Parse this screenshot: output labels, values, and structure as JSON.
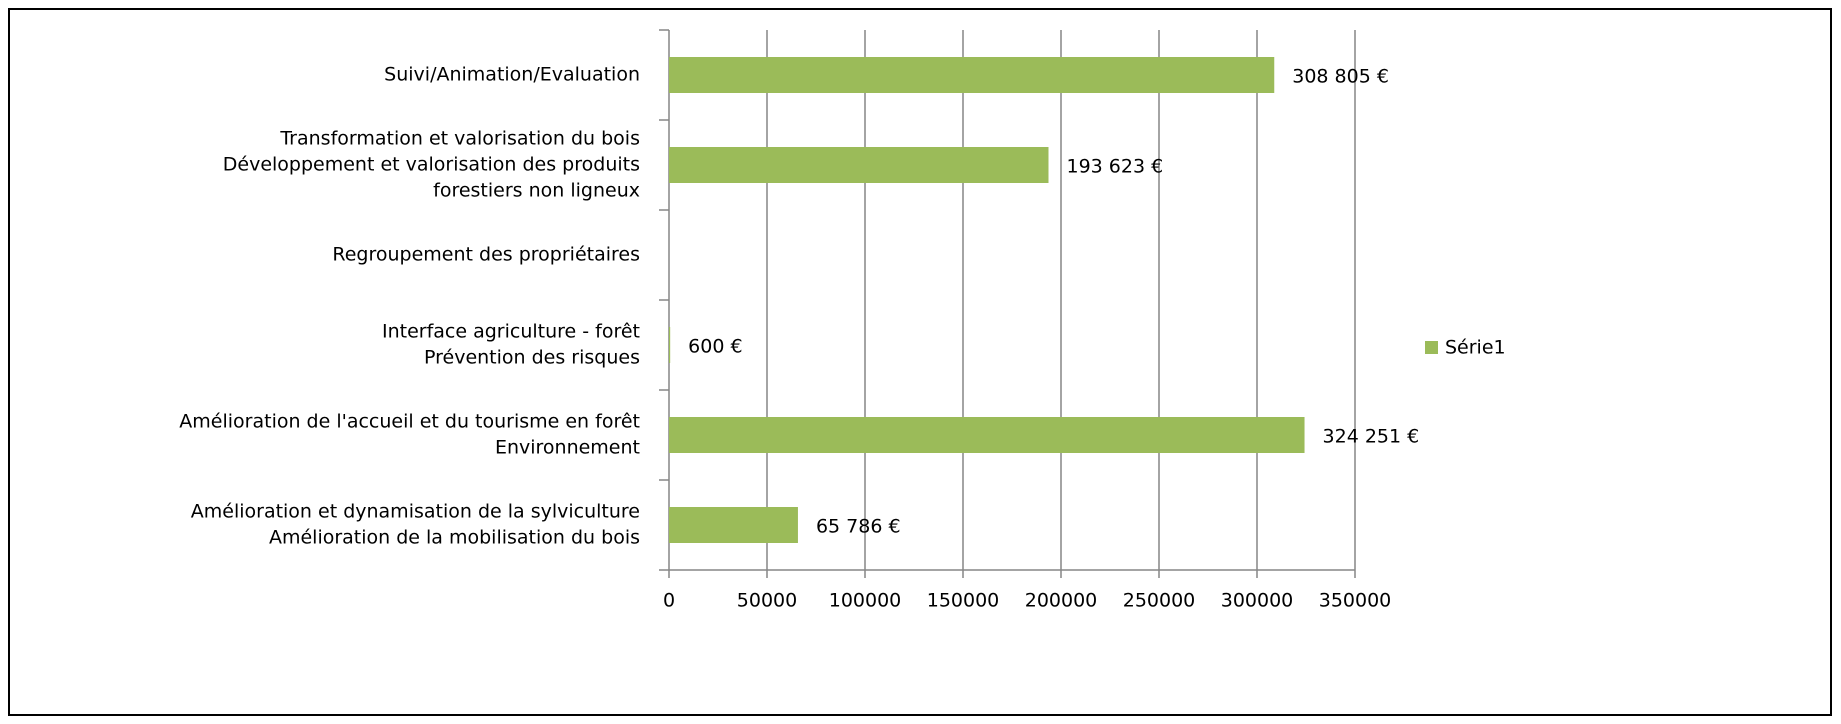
{
  "chart_data": {
    "type": "bar",
    "orientation": "horizontal",
    "categories": [
      [
        "Amélioration et dynamisation de la sylviculture",
        "Amélioration de la mobilisation du bois"
      ],
      [
        "Amélioration de l'accueil et du tourisme en forêt",
        "Environnement"
      ],
      [
        "Interface agriculture - forêt",
        "Prévention des risques"
      ],
      [
        "Regroupement des propriétaires"
      ],
      [
        "Transformation et valorisation du bois",
        "Développement et valorisation des produits",
        "forestiers non ligneux"
      ],
      [
        "Suivi/Animation/Evaluation"
      ]
    ],
    "series": [
      {
        "name": "Série1",
        "color": "#9bbb59",
        "values": [
          65786,
          324251,
          600,
          null,
          193623,
          308805
        ],
        "value_labels": [
          "65 786 €",
          "324 251 €",
          "600 €",
          null,
          "193 623 €",
          "308 805 €"
        ]
      }
    ],
    "xlim": [
      0,
      350000
    ],
    "xticks": [
      0,
      50000,
      100000,
      150000,
      200000,
      250000,
      300000,
      350000
    ],
    "grid": true,
    "legend": "right"
  }
}
